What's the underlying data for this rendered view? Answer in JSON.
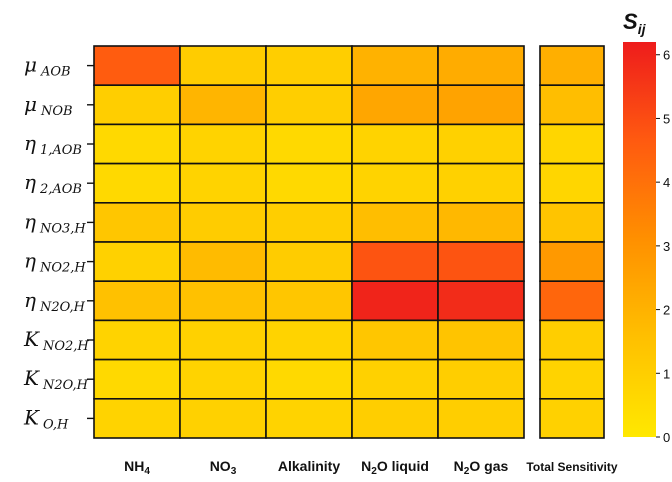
{
  "chart_data": {
    "type": "heatmap",
    "colorbar_title": "S ij",
    "colorbar_title_main": "S",
    "colorbar_title_sub": "ij",
    "colorbar_range": [
      0,
      6.2
    ],
    "colorbar_ticks": [
      "0",
      "1",
      "2",
      "3",
      "4",
      "5",
      "6"
    ],
    "colorscale": [
      "#ffe800",
      "#ffc000",
      "#ff9000",
      "#ff5a10",
      "#ee1c1c"
    ],
    "rows": [
      {
        "sym": "μ",
        "sub": "AOB"
      },
      {
        "sym": "μ",
        "sub": "NOB"
      },
      {
        "sym": "η",
        "sub": "1,AOB"
      },
      {
        "sym": "η",
        "sub": "2,AOB"
      },
      {
        "sym": "η",
        "sub": "NO3,H"
      },
      {
        "sym": "η",
        "sub": "NO2,H"
      },
      {
        "sym": "η",
        "sub": "N2O,H"
      },
      {
        "sym": "K",
        "sub": "NO2,H"
      },
      {
        "sym": "K",
        "sub": "N2O,H"
      },
      {
        "sym": "K",
        "sub": "O,H"
      }
    ],
    "columns": [
      {
        "main": "NH",
        "sub": "4",
        "rest": ""
      },
      {
        "main": "NO",
        "sub": "3",
        "rest": ""
      },
      {
        "main": "Alkalinity",
        "sub": "",
        "rest": ""
      },
      {
        "main": "N",
        "sub": "2",
        "rest": "O liquid"
      },
      {
        "main": "N",
        "sub": "2",
        "rest": "O gas"
      }
    ],
    "total_column": {
      "main": "Total Sensitivity",
      "sub": "",
      "rest": ""
    },
    "values": [
      [
        4.6,
        1.1,
        1.0,
        2.0,
        2.2
      ],
      [
        1.0,
        1.9,
        1.0,
        2.4,
        2.5
      ],
      [
        0.6,
        0.8,
        0.6,
        0.8,
        0.9
      ],
      [
        0.6,
        0.8,
        0.6,
        0.8,
        0.9
      ],
      [
        1.3,
        1.1,
        1.0,
        1.6,
        1.8
      ],
      [
        0.9,
        1.7,
        1.1,
        4.8,
        4.8
      ],
      [
        1.5,
        1.5,
        1.3,
        6.0,
        5.8
      ],
      [
        0.8,
        0.9,
        0.8,
        1.3,
        1.4
      ],
      [
        0.6,
        0.8,
        0.6,
        0.9,
        1.0
      ],
      [
        0.8,
        0.9,
        0.8,
        1.0,
        1.0
      ]
    ],
    "total_values": [
      2.1,
      1.6,
      0.7,
      0.7,
      1.4,
      2.8,
      4.3,
      1.0,
      0.8,
      0.9
    ]
  }
}
